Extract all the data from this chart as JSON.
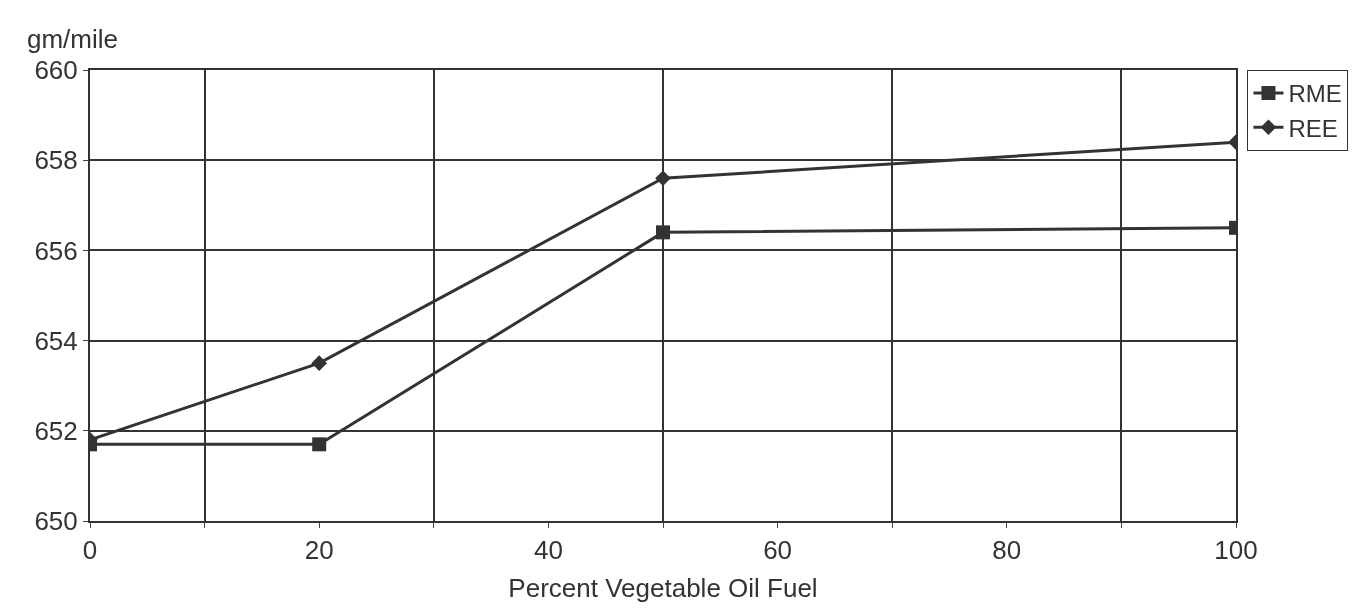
{
  "chart_data": {
    "type": "line",
    "xlabel": "Percent Vegetable Oil Fuel",
    "ylabel": "gm/mile",
    "x": [
      0,
      20,
      50,
      100
    ],
    "series": [
      {
        "name": "RME",
        "color": "#333333",
        "values": [
          651.7,
          651.7,
          656.4,
          656.5
        ],
        "marker": "square"
      },
      {
        "name": "REE",
        "color": "#333333",
        "values": [
          651.8,
          653.5,
          657.6,
          658.4
        ],
        "marker": "diamond"
      }
    ],
    "xlim": [
      0,
      100
    ],
    "xticks": [
      0,
      20,
      40,
      60,
      80,
      100
    ],
    "ylim": [
      650,
      660
    ],
    "yticks": [
      650,
      652,
      654,
      656,
      658,
      660
    ],
    "grid": true,
    "legend": "top right",
    "line_style": "solid"
  }
}
